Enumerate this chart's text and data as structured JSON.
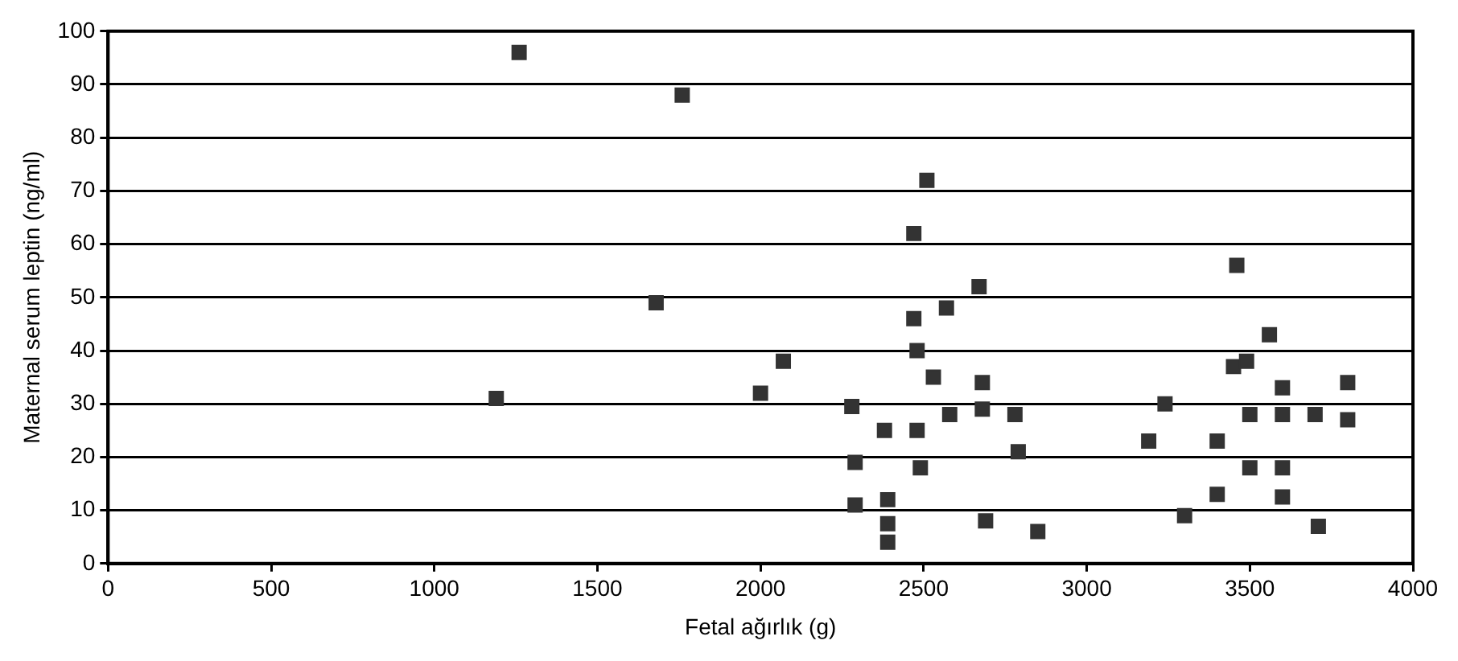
{
  "chart_data": {
    "type": "scatter",
    "xlabel": "Fetal ağırlık (g)",
    "ylabel": "Maternal serum leptin (ng/ml)",
    "xlim": [
      0,
      4000
    ],
    "xticks": [
      0,
      500,
      1000,
      1500,
      2000,
      2500,
      3000,
      3500,
      4000
    ],
    "ylim": [
      0,
      100
    ],
    "yticks": [
      0,
      10,
      20,
      30,
      40,
      50,
      60,
      70,
      80,
      90,
      100
    ],
    "grid": "y",
    "marker": "square",
    "legend": false,
    "series": [
      {
        "color": "#333333",
        "x": [
          1190,
          1260,
          1680,
          1760,
          2000,
          2070,
          2510,
          2470,
          3460,
          2670,
          2570,
          2470,
          3560,
          2480,
          2530,
          2680,
          2680,
          2280,
          2580,
          2780,
          2380,
          2480,
          3240,
          3190,
          3400,
          3450,
          3490,
          3500,
          3600,
          3600,
          3700,
          3800,
          3800,
          2790,
          2290,
          2490,
          3500,
          3600,
          3600,
          3400,
          3300,
          3710,
          2690,
          2850,
          2290,
          2390,
          2390,
          2390
        ],
        "values": [
          31,
          96,
          49,
          88,
          32,
          38,
          72,
          62,
          56,
          52,
          48,
          46,
          43,
          40,
          35,
          34,
          29,
          29.5,
          28,
          28,
          25,
          25,
          30,
          23,
          23,
          37,
          38,
          28,
          33,
          28,
          28,
          34,
          27,
          21,
          19,
          18,
          18,
          18,
          12.5,
          13,
          9,
          7,
          8,
          6,
          11,
          12,
          7.5,
          4
        ]
      }
    ]
  }
}
